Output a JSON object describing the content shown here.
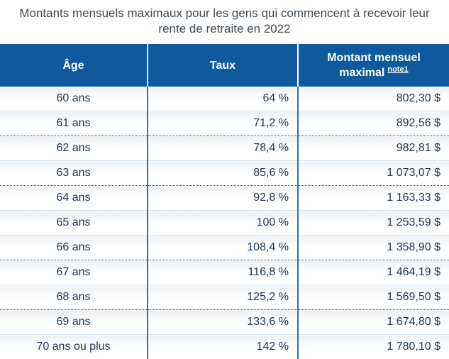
{
  "chart_data": {
    "type": "table",
    "title": "Montants mensuels maximaux pour les gens qui commencent à recevoir leur rente de retraite en 2022",
    "columns": [
      "Âge",
      "Taux",
      "Montant mensuel maximal"
    ],
    "note_reference": "note1",
    "rows": [
      {
        "age": "60 ans",
        "rate": "64 %",
        "amount": "802,30 $"
      },
      {
        "age": "61 ans",
        "rate": "71,2 %",
        "amount": "892,56 $"
      },
      {
        "age": "62 ans",
        "rate": "78,4 %",
        "amount": "982,81 $"
      },
      {
        "age": "63 ans",
        "rate": "85,6 %",
        "amount": "1 073,07 $"
      },
      {
        "age": "64 ans",
        "rate": "92,8 %",
        "amount": "1 163,33 $"
      },
      {
        "age": "65 ans",
        "rate": "100 %",
        "amount": "1 253,59 $"
      },
      {
        "age": "66 ans",
        "rate": "108,4 %",
        "amount": "1 358,90 $"
      },
      {
        "age": "67 ans",
        "rate": "116,8 %",
        "amount": "1 464,19 $"
      },
      {
        "age": "68 ans",
        "rate": "125,2 %",
        "amount": "1 569,50 $"
      },
      {
        "age": "69 ans",
        "rate": "133,6 %",
        "amount": "1 674,80 $"
      },
      {
        "age": "70 ans ou plus",
        "rate": "142 %",
        "amount": "1 780,10 $"
      }
    ]
  },
  "header_display": {
    "age": "Âge",
    "rate": "Taux",
    "amount_line1": "Montant mensuel",
    "amount_line2": "maximal",
    "note": "note1"
  },
  "colors": {
    "header_background": "#0f599c",
    "header_text": "#ffffff",
    "column_divider": "#2d73aa",
    "row_divider_solid": "#d9e4ee",
    "row_divider_dotted": "#14518d",
    "cell_text": "#223654",
    "title_text": "#3f4a53"
  }
}
